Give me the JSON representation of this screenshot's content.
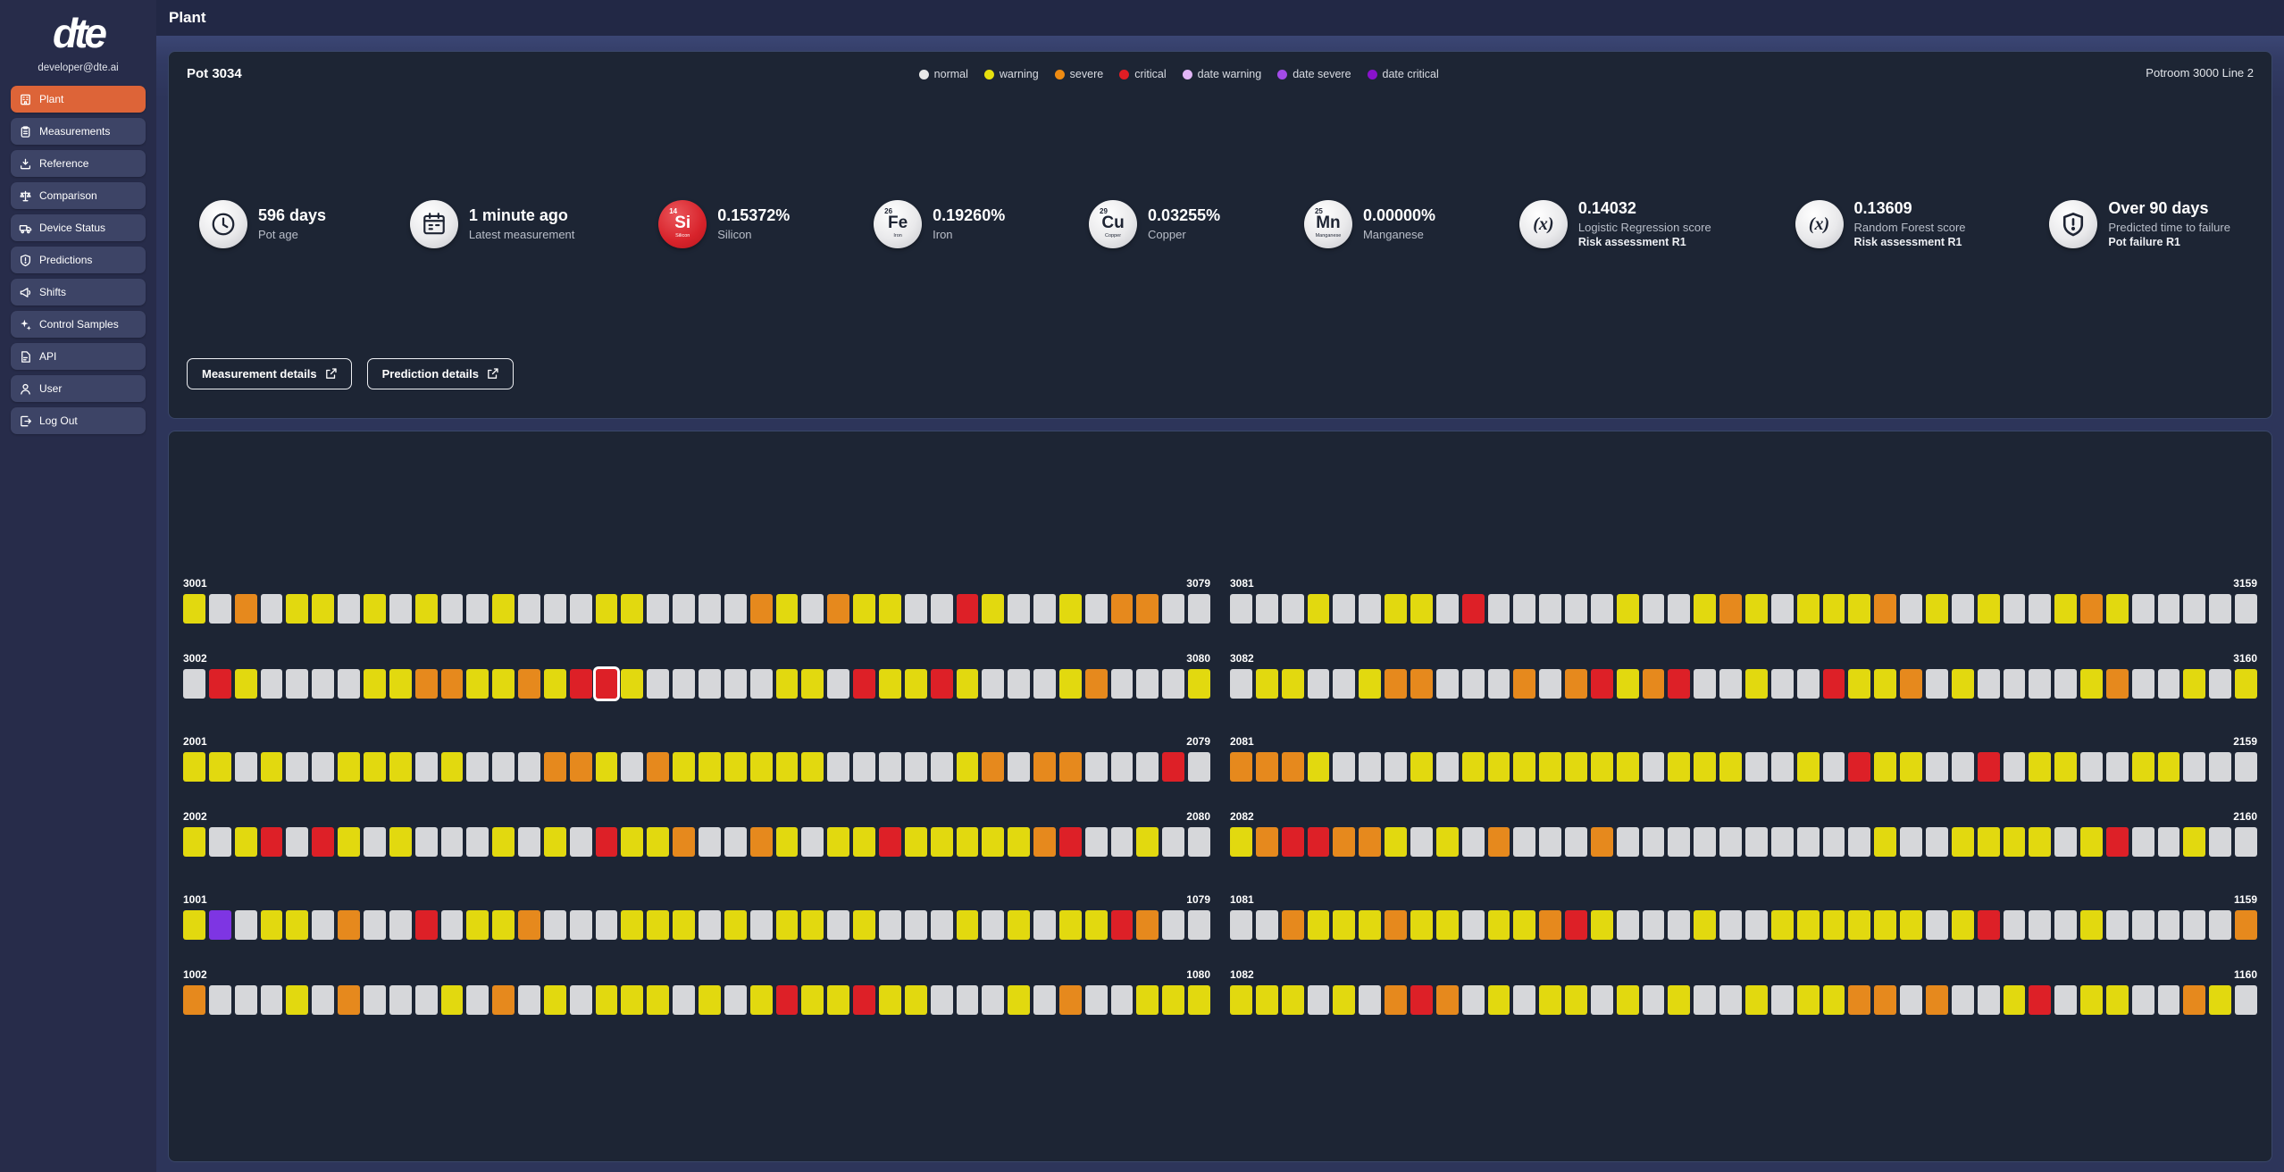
{
  "theme": {
    "accent": "#dd6438",
    "panel_bg": "#1d2534",
    "sidebar_bg": "#272c4a",
    "content_bg": "#2d355a",
    "header_bg": "#222845",
    "item_bg": "#3d4466"
  },
  "sidebar": {
    "email": "developer@dte.ai",
    "logo_text": "dte",
    "items": [
      {
        "label": "Plant",
        "icon": "factory-icon",
        "active": true
      },
      {
        "label": "Measurements",
        "icon": "clipboard-icon",
        "active": false
      },
      {
        "label": "Reference",
        "icon": "download-icon",
        "active": false
      },
      {
        "label": "Comparison",
        "icon": "scale-icon",
        "active": false
      },
      {
        "label": "Device Status",
        "icon": "truck-icon",
        "active": false
      },
      {
        "label": "Predictions",
        "icon": "shield-icon",
        "active": false
      },
      {
        "label": "Shifts",
        "icon": "megaphone-icon",
        "active": false
      },
      {
        "label": "Control Samples",
        "icon": "sparkles-icon",
        "active": false
      },
      {
        "label": "API",
        "icon": "document-icon",
        "active": false
      },
      {
        "label": "User",
        "icon": "user-icon",
        "active": false
      },
      {
        "label": "Log Out",
        "icon": "logout-icon",
        "active": false
      }
    ]
  },
  "header": {
    "title": "Plant"
  },
  "pot_panel": {
    "title": "Pot 3034",
    "location": "Potroom 3000 Line 2",
    "legend": [
      {
        "label": "normal",
        "color": "#e8e8e8"
      },
      {
        "label": "warning",
        "color": "#e6e00e"
      },
      {
        "label": "severe",
        "color": "#ee8b12"
      },
      {
        "label": "critical",
        "color": "#e01d24"
      },
      {
        "label": "date warning",
        "color": "#e2b6f7"
      },
      {
        "label": "date severe",
        "color": "#a34be8"
      },
      {
        "label": "date critical",
        "color": "#8912cb"
      }
    ],
    "metrics": [
      {
        "icon": "clock-icon",
        "value": "596 days",
        "label": "Pot age"
      },
      {
        "icon": "calendar-icon",
        "value": "1 minute ago",
        "label": "Latest measurement"
      },
      {
        "icon": "element-icon",
        "element": {
          "number": "14",
          "symbol": "Si",
          "name": "Silicon"
        },
        "accent": "#d8232b",
        "value": "0.15372%",
        "label": "Silicon"
      },
      {
        "icon": "element-icon",
        "element": {
          "number": "26",
          "symbol": "Fe",
          "name": "Iron"
        },
        "value": "0.19260%",
        "label": "Iron"
      },
      {
        "icon": "element-icon",
        "element": {
          "number": "29",
          "symbol": "Cu",
          "name": "Copper"
        },
        "value": "0.03255%",
        "label": "Copper"
      },
      {
        "icon": "element-icon",
        "element": {
          "number": "25",
          "symbol": "Mn",
          "name": "Manganese"
        },
        "value": "0.00000%",
        "label": "Manganese"
      },
      {
        "icon": "formula-icon",
        "value": "0.14032",
        "label": "Logistic Regression score",
        "sublabel": "Risk assessment R1"
      },
      {
        "icon": "formula-icon",
        "value": "0.13609",
        "label": "Random Forest score",
        "sublabel": "Risk assessment R1"
      },
      {
        "icon": "shield-icon",
        "value": "Over 90 days",
        "label": "Predicted time to failure",
        "sublabel": "Pot failure R1"
      }
    ],
    "buttons": [
      {
        "label": "Measurement details"
      },
      {
        "label": "Prediction details"
      }
    ]
  },
  "grid_panel": {
    "status_colors": {
      "G": "#d6d7da",
      "Y": "#e2d90f",
      "O": "#e6891d",
      "R": "#dd2027",
      "P": "#7e35e3"
    },
    "status_names": {
      "G": "normal",
      "Y": "warning",
      "O": "severe",
      "R": "critical",
      "P": "date severe"
    },
    "selected_pot": "3034",
    "rows": [
      {
        "start": "3001",
        "end": "3079",
        "cells": "YGOGYYGYGYGGYGGGYYGGGGOYGOYYGGRYGGYGOOGG"
      },
      {
        "start": "3081",
        "end": "3159",
        "cells": "GGGYGGYYGRGGGGGYGGYOYGYYYOGYGYGGYOYGGGGG"
      },
      {
        "start": "3002",
        "end": "3080",
        "cells": "GRYGGGGYYOOYYOYRSYGGGGGYYGRYYRYGGGYOGGGY"
      },
      {
        "start": "3082",
        "end": "3160",
        "cells": "GYYGGYOOGGGOGORYORGGYGGRYYOGYGGGGYOGGYGY"
      },
      {
        "start": "2001",
        "end": "2079",
        "cells": "YYGYGGYYYGYGGGOOYGOYYYYYYGGGGGYOGOOGGGRG"
      },
      {
        "start": "2081",
        "end": "2159",
        "cells": "OOOYGGGYGYYYYYYYGYYYGGYGRYYGGRGYYGGYYGGG"
      },
      {
        "start": "2002",
        "end": "2080",
        "cells": "YGYRGRYGYGGGYGYGRYYOGGOYGYYRYYYYYORGGYGG"
      },
      {
        "start": "2082",
        "end": "2160",
        "cells": "YORROOYGYGOGGGOGGGGGGGGGGYGGYYYYGYRGGYGG"
      },
      {
        "start": "1001",
        "end": "1079",
        "cells": "YPGYYGOGGRGYYOGGGYYYGYGYYGYGGGYGYGYYROGG"
      },
      {
        "start": "1081",
        "end": "1159",
        "cells": "GGOYYYOYYGYYORYGGGYGGYYYYYYGYRGGGYGGGGGO"
      },
      {
        "start": "1002",
        "end": "1080",
        "cells": "OGGGYGOGGGYGOGYGYYYGYGYRYYRYYGGGYGOGGYYY"
      },
      {
        "start": "1082",
        "end": "1160",
        "cells": "YYYGYGOROGYGYYGYGYGGYGYYOOGOGGYRGYYGGOYG"
      }
    ]
  }
}
